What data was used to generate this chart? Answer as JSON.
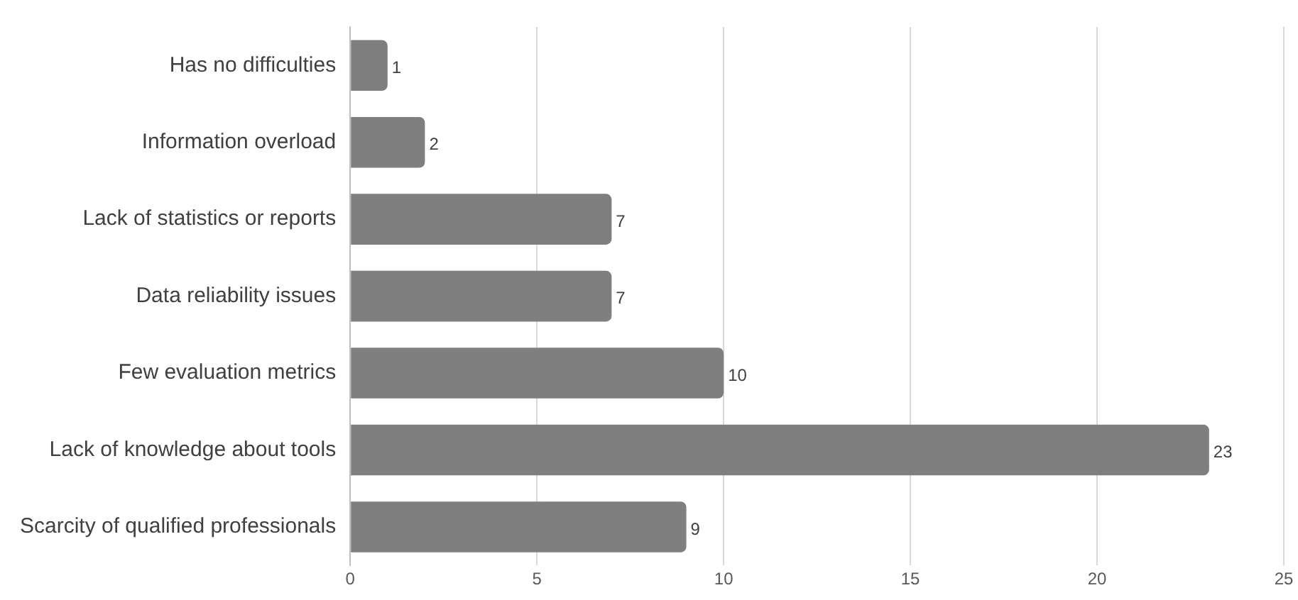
{
  "chart_data": {
    "type": "bar",
    "orientation": "horizontal",
    "categories": [
      "Has no difficulties",
      "Information overload",
      "Lack of statistics or reports",
      "Data reliability issues",
      "Few evaluation metrics",
      "Lack of knowledge about tools",
      "Scarcity of qualified professionals"
    ],
    "values": [
      1,
      2,
      7,
      7,
      10,
      23,
      9
    ],
    "color": "#7f7f7f",
    "xlim": [
      0,
      25
    ],
    "xticks": [
      0,
      5,
      10,
      15,
      20,
      25
    ],
    "grid": "x",
    "data_labels": true
  }
}
